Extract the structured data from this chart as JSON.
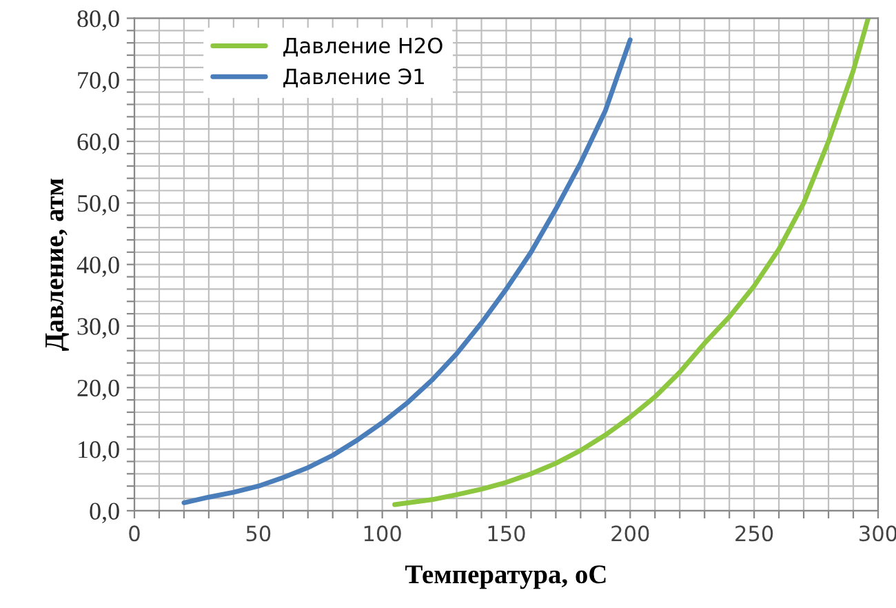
{
  "chart_data": {
    "type": "line",
    "xlabel": "Температура, оС",
    "ylabel": "Давление, атм",
    "xlim": [
      0,
      300
    ],
    "ylim": [
      0,
      80
    ],
    "xticks": [
      0,
      {
        "value": 10,
        "label": null
      },
      {
        "value": 20,
        "label": null
      },
      {
        "value": 30,
        "label": null
      },
      {
        "value": 40,
        "label": null
      },
      50,
      {
        "value": 60,
        "label": null
      },
      {
        "value": 70,
        "label": null
      },
      {
        "value": 80,
        "label": null
      },
      {
        "value": 90,
        "label": null
      },
      100,
      {
        "value": 110,
        "label": null
      },
      {
        "value": 120,
        "label": null
      },
      {
        "value": 130,
        "label": null
      },
      {
        "value": 140,
        "label": null
      },
      150,
      {
        "value": 160,
        "label": null
      },
      {
        "value": 170,
        "label": null
      },
      {
        "value": 180,
        "label": null
      },
      {
        "value": 190,
        "label": null
      },
      200,
      {
        "value": 210,
        "label": null
      },
      {
        "value": 220,
        "label": null
      },
      {
        "value": 230,
        "label": null
      },
      {
        "value": 240,
        "label": null
      },
      250,
      {
        "value": 260,
        "label": null
      },
      {
        "value": 270,
        "label": null
      },
      {
        "value": 280,
        "label": null
      },
      {
        "value": 290,
        "label": null
      },
      300
    ],
    "yticks": [
      {
        "value": 0,
        "label": "0,0"
      },
      {
        "value": 2,
        "label": null
      },
      {
        "value": 4,
        "label": null
      },
      {
        "value": 6,
        "label": null
      },
      {
        "value": 8,
        "label": null
      },
      {
        "value": 10,
        "label": "10,0"
      },
      {
        "value": 12,
        "label": null
      },
      {
        "value": 14,
        "label": null
      },
      {
        "value": 16,
        "label": null
      },
      {
        "value": 18,
        "label": null
      },
      {
        "value": 20,
        "label": "20,0"
      },
      {
        "value": 22,
        "label": null
      },
      {
        "value": 24,
        "label": null
      },
      {
        "value": 26,
        "label": null
      },
      {
        "value": 28,
        "label": null
      },
      {
        "value": 30,
        "label": "30,0"
      },
      {
        "value": 32,
        "label": null
      },
      {
        "value": 34,
        "label": null
      },
      {
        "value": 36,
        "label": null
      },
      {
        "value": 38,
        "label": null
      },
      {
        "value": 40,
        "label": "40,0"
      },
      {
        "value": 42,
        "label": null
      },
      {
        "value": 44,
        "label": null
      },
      {
        "value": 46,
        "label": null
      },
      {
        "value": 48,
        "label": null
      },
      {
        "value": 50,
        "label": "50,0"
      },
      {
        "value": 52,
        "label": null
      },
      {
        "value": 54,
        "label": null
      },
      {
        "value": 56,
        "label": null
      },
      {
        "value": 58,
        "label": null
      },
      {
        "value": 60,
        "label": "60,0"
      },
      {
        "value": 62,
        "label": null
      },
      {
        "value": 64,
        "label": null
      },
      {
        "value": 66,
        "label": null
      },
      {
        "value": 68,
        "label": null
      },
      {
        "value": 70,
        "label": "70,0"
      },
      {
        "value": 72,
        "label": null
      },
      {
        "value": 74,
        "label": null
      },
      {
        "value": 76,
        "label": null
      },
      {
        "value": 78,
        "label": null
      },
      {
        "value": 80,
        "label": "80,0"
      }
    ],
    "grid": true,
    "legend": "top left",
    "marker": "none",
    "line_style": "solid",
    "series": [
      {
        "name": "Давление H2O",
        "color": "#8dc63f",
        "x": [
          105,
          120,
          130,
          140,
          150,
          160,
          170,
          180,
          190,
          200,
          210,
          220,
          230,
          240,
          250,
          260,
          270,
          280,
          290,
          296
        ],
        "values": [
          1.0,
          1.8,
          2.6,
          3.5,
          4.6,
          6.0,
          7.7,
          9.8,
          12.3,
          15.2,
          18.5,
          22.5,
          27.2,
          31.5,
          36.5,
          42.5,
          50,
          60,
          71.5,
          80
        ]
      },
      {
        "name": "Давление Э1",
        "color": "#4a7ebb",
        "x": [
          20,
          30,
          40,
          50,
          60,
          70,
          80,
          90,
          100,
          110,
          120,
          130,
          140,
          150,
          160,
          170,
          180,
          190,
          200
        ],
        "values": [
          1.3,
          2.2,
          3.0,
          4.0,
          5.4,
          7.0,
          9.0,
          11.5,
          14.3,
          17.5,
          21.2,
          25.5,
          30.5,
          36,
          42,
          49,
          56.5,
          65,
          76.5
        ]
      }
    ]
  }
}
